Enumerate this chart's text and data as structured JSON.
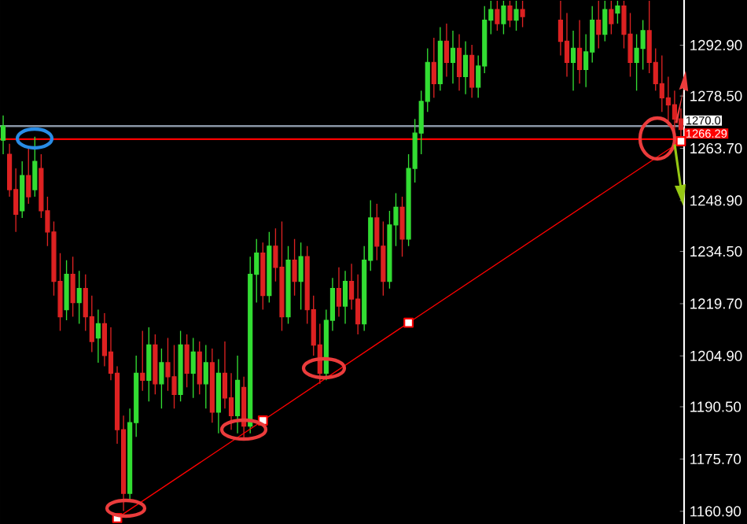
{
  "chart_data": {
    "type": "candlestick",
    "categories": [
      null,
      null,
      null,
      null,
      null,
      null,
      null,
      null,
      null,
      null,
      null,
      null,
      null,
      null,
      null,
      null,
      null,
      null,
      null,
      null,
      null,
      null,
      null,
      null,
      null,
      null,
      null,
      null,
      null,
      null,
      null,
      null,
      null,
      null,
      null,
      null,
      null,
      null,
      null,
      null,
      null,
      null,
      null,
      null,
      null,
      null,
      null,
      null,
      null,
      null,
      null,
      null,
      null,
      null,
      null,
      null,
      null,
      null,
      null,
      null,
      null,
      null,
      null,
      null,
      null,
      null,
      null,
      null,
      null,
      null,
      null,
      null,
      null,
      null,
      null,
      null,
      null,
      null,
      null,
      null,
      null,
      null,
      null,
      null,
      null,
      null,
      null,
      null,
      null,
      null,
      null,
      null,
      null,
      null,
      null,
      null,
      null,
      null,
      null,
      null,
      null,
      null,
      null,
      null,
      null,
      null,
      null,
      null
    ],
    "ohlc": [
      [
        1266,
        1273,
        1262,
        1270
      ],
      [
        1262,
        1265,
        1250,
        1252
      ],
      [
        1252,
        1258,
        1240,
        1245
      ],
      [
        1246,
        1260,
        1244,
        1256
      ],
      [
        1256,
        1264,
        1248,
        1250
      ],
      [
        1252,
        1267,
        1250,
        1260
      ],
      [
        1258,
        1262,
        1244,
        1246
      ],
      [
        1246,
        1250,
        1236,
        1240
      ],
      [
        1240,
        1243,
        1222,
        1226
      ],
      [
        1226,
        1234,
        1212,
        1216
      ],
      [
        1218,
        1232,
        1215,
        1228
      ],
      [
        1228,
        1233,
        1216,
        1220
      ],
      [
        1220,
        1229,
        1214,
        1224
      ],
      [
        1224,
        1228,
        1212,
        1216
      ],
      [
        1216,
        1222,
        1206,
        1209
      ],
      [
        1210,
        1218,
        1203,
        1214
      ],
      [
        1214,
        1217,
        1202,
        1205
      ],
      [
        1206,
        1213,
        1198,
        1200
      ],
      [
        1200,
        1202,
        1180,
        1184
      ],
      [
        1184,
        1188,
        1161,
        1166
      ],
      [
        1166,
        1190,
        1164,
        1186
      ],
      [
        1186,
        1205,
        1182,
        1200
      ],
      [
        1200,
        1212,
        1195,
        1198
      ],
      [
        1198,
        1213,
        1192,
        1208
      ],
      [
        1208,
        1211,
        1194,
        1197
      ],
      [
        1197,
        1207,
        1190,
        1203
      ],
      [
        1203,
        1210,
        1195,
        1199
      ],
      [
        1199,
        1208,
        1190,
        1194
      ],
      [
        1194,
        1212,
        1192,
        1208
      ],
      [
        1208,
        1211,
        1196,
        1200
      ],
      [
        1200,
        1210,
        1193,
        1206
      ],
      [
        1206,
        1209,
        1194,
        1197
      ],
      [
        1197,
        1208,
        1190,
        1203
      ],
      [
        1203,
        1207,
        1186,
        1189
      ],
      [
        1189,
        1204,
        1183,
        1200
      ],
      [
        1200,
        1209,
        1190,
        1193
      ],
      [
        1193,
        1200,
        1184,
        1188
      ],
      [
        1188,
        1205,
        1183,
        1198
      ],
      [
        1196,
        1199,
        1181,
        1185
      ],
      [
        1185,
        1233,
        1183,
        1228
      ],
      [
        1228,
        1238,
        1220,
        1234
      ],
      [
        1234,
        1237,
        1218,
        1222
      ],
      [
        1222,
        1240,
        1220,
        1236
      ],
      [
        1236,
        1241,
        1226,
        1230
      ],
      [
        1230,
        1243,
        1212,
        1216
      ],
      [
        1216,
        1236,
        1214,
        1232
      ],
      [
        1232,
        1238,
        1222,
        1226
      ],
      [
        1226,
        1237,
        1218,
        1233
      ],
      [
        1233,
        1236,
        1214,
        1218
      ],
      [
        1218,
        1222,
        1205,
        1208
      ],
      [
        1208,
        1214,
        1197,
        1200
      ],
      [
        1200,
        1218,
        1198,
        1215
      ],
      [
        1215,
        1227,
        1212,
        1224
      ],
      [
        1224,
        1230,
        1216,
        1219
      ],
      [
        1219,
        1229,
        1214,
        1226
      ],
      [
        1226,
        1231,
        1218,
        1221
      ],
      [
        1221,
        1228,
        1211,
        1214
      ],
      [
        1214,
        1236,
        1212,
        1232
      ],
      [
        1232,
        1249,
        1229,
        1244
      ],
      [
        1244,
        1248,
        1232,
        1236
      ],
      [
        1236,
        1243,
        1222,
        1226
      ],
      [
        1226,
        1246,
        1224,
        1242
      ],
      [
        1242,
        1251,
        1236,
        1247
      ],
      [
        1247,
        1250,
        1233,
        1238
      ],
      [
        1238,
        1262,
        1236,
        1258
      ],
      [
        1258,
        1272,
        1254,
        1268
      ],
      [
        1268,
        1280,
        1262,
        1277
      ],
      [
        1277,
        1292,
        1274,
        1288
      ],
      [
        1288,
        1295,
        1278,
        1282
      ],
      [
        1282,
        1298,
        1280,
        1294
      ],
      [
        1294,
        1299,
        1284,
        1288
      ],
      [
        1288,
        1297,
        1282,
        1292
      ],
      [
        1292,
        1296,
        1280,
        1284
      ],
      [
        1284,
        1294,
        1279,
        1290
      ],
      [
        1290,
        1293,
        1278,
        1281
      ],
      [
        1281,
        1290,
        1278,
        1287
      ],
      [
        1287,
        1304,
        1285,
        1300
      ],
      [
        1300,
        1305.5,
        1296,
        1303
      ],
      [
        1303,
        1305.5,
        1297,
        1299
      ],
      [
        1299,
        1305.5,
        1296,
        1304
      ],
      [
        1304,
        1305.5,
        1298,
        1300
      ],
      [
        1300,
        1305.5,
        1297,
        1303
      ],
      [
        1303,
        1305.5,
        1298,
        1301
      ],
      null,
      null,
      null,
      null,
      null,
      [
        1300,
        1305.5,
        1290,
        1294
      ],
      [
        1294,
        1302,
        1284,
        1288
      ],
      [
        1288,
        1297,
        1280,
        1292
      ],
      [
        1292,
        1300,
        1282,
        1286
      ],
      [
        1286,
        1296,
        1281,
        1291
      ],
      [
        1291,
        1304,
        1288,
        1300
      ],
      [
        1300,
        1305.5,
        1292,
        1296
      ],
      [
        1296,
        1305.5,
        1294,
        1303
      ],
      [
        1303,
        1305.5,
        1296,
        1299
      ],
      [
        1302,
        1305.5,
        1299,
        1304
      ],
      [
        1304,
        1305.5,
        1292,
        1296
      ],
      [
        1296,
        1302,
        1284,
        1288
      ],
      [
        1288,
        1296,
        1280,
        1292
      ],
      [
        1292,
        1300,
        1286,
        1297
      ],
      [
        1297,
        1305.5,
        1285,
        1288
      ],
      [
        1288,
        1292,
        1280,
        1282
      ],
      [
        1282,
        1290,
        1274,
        1278
      ],
      [
        1278,
        1284,
        1270,
        1276
      ],
      [
        1276,
        1280,
        1268,
        1272
      ],
      [
        1272,
        1275,
        1266,
        1269
      ]
    ],
    "series": [
      {
        "type": "line",
        "values": [
          null,
          null,
          null,
          null,
          null,
          null,
          null,
          null,
          null,
          null,
          null,
          null,
          null,
          null,
          null,
          null,
          null,
          null,
          1159.0,
          null,
          null,
          null,
          null,
          null,
          null,
          null,
          null,
          null,
          null,
          null,
          null,
          null,
          null,
          null,
          null,
          null,
          null,
          null,
          null,
          null,
          null,
          1186.6,
          null,
          null,
          null,
          null,
          null,
          null,
          null,
          null,
          null,
          null,
          null,
          null,
          null,
          null,
          null,
          null,
          null,
          null,
          null,
          null,
          null,
          null,
          1214.3,
          null,
          null,
          null,
          null,
          null,
          null,
          null,
          null,
          null,
          null,
          null,
          null,
          null,
          null,
          null,
          null,
          null,
          null,
          null,
          null,
          null,
          null,
          null,
          null,
          null,
          null,
          null,
          null,
          null,
          null,
          null,
          null,
          null,
          null,
          null,
          null,
          null,
          null,
          null,
          null,
          null,
          null,
          1265.7
        ],
        "color": "#ff0000",
        "marker": "square"
      }
    ],
    "ylim": [
      1157.3,
      1305.7
    ],
    "yticks": [
      {
        "value": 1160.9,
        "label": "1160.90"
      },
      {
        "value": 1175.7,
        "label": "1175.70"
      },
      {
        "value": 1190.5,
        "label": "1190.50"
      },
      {
        "value": 1204.9,
        "label": "1204.90"
      },
      {
        "value": 1219.7,
        "label": "1219.70"
      },
      {
        "value": 1234.5,
        "label": "1234.50"
      },
      {
        "value": 1248.9,
        "label": "1248.90"
      },
      {
        "value": 1263.7,
        "label": "1263.70"
      },
      {
        "value": 1278.5,
        "label": "1278.50"
      },
      {
        "value": 1292.9,
        "label": "1292.90"
      }
    ],
    "ref_lines": [
      {
        "axis": "y",
        "value": 1270.0,
        "label": "1270.0",
        "color": "#8a96a6"
      },
      {
        "axis": "y",
        "value": 1266.29,
        "label": "1266.29",
        "color": "#ff0000"
      }
    ],
    "tick_labels": "y"
  }
}
